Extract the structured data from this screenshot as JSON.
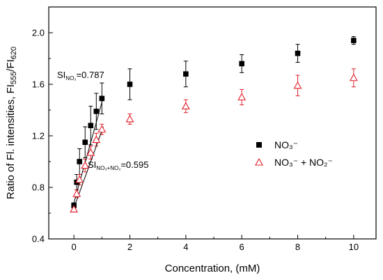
{
  "chart_data": {
    "type": "scatter",
    "xlabel": "Concentration, (mM)",
    "ylabel_parts": {
      "main": "Ratio of Fl. intensities, FI",
      "sub1": "555",
      "sep": "/FI",
      "sub2": "620"
    },
    "xlim": [
      -0.9,
      10.8
    ],
    "ylim": [
      0.4,
      2.2
    ],
    "x_ticks": [
      0,
      2,
      4,
      6,
      8,
      10
    ],
    "y_ticks": [
      0.4,
      0.8,
      1.2,
      1.6,
      2.0
    ],
    "x_tick_labels": [
      "0",
      "2",
      "4",
      "6",
      "8",
      "10"
    ],
    "y_tick_labels": [
      "0.4",
      "0.8",
      "1.2",
      "1.6",
      "2.0"
    ],
    "grid": false,
    "legend_position": "center-right",
    "series": [
      {
        "name": "NO₃⁻",
        "marker": "filled-square",
        "color": "#000000",
        "points": [
          {
            "x": 0,
            "y": 0.66,
            "err": 0.02
          },
          {
            "x": 0.1,
            "y": 0.84,
            "err": 0.06
          },
          {
            "x": 0.2,
            "y": 1.0,
            "err": 0.1
          },
          {
            "x": 0.4,
            "y": 1.15,
            "err": 0.12
          },
          {
            "x": 0.6,
            "y": 1.28,
            "err": 0.15
          },
          {
            "x": 0.8,
            "y": 1.39,
            "err": 0.14
          },
          {
            "x": 1,
            "y": 1.49,
            "err": 0.12
          },
          {
            "x": 2,
            "y": 1.6,
            "err": 0.12
          },
          {
            "x": 4,
            "y": 1.68,
            "err": 0.1
          },
          {
            "x": 6,
            "y": 1.76,
            "err": 0.07
          },
          {
            "x": 8,
            "y": 1.84,
            "err": 0.07
          },
          {
            "x": 10,
            "y": 1.94,
            "err": 0.03
          }
        ],
        "fit": {
          "x0": 0,
          "y0": 0.68,
          "x1": 1.05,
          "y1": 1.5
        }
      },
      {
        "name": "NO₃⁻ + NO₂⁻",
        "marker": "open-triangle",
        "color": "#e0202a",
        "points": [
          {
            "x": 0,
            "y": 0.63,
            "err": 0.02
          },
          {
            "x": 0.1,
            "y": 0.75,
            "err": 0.03
          },
          {
            "x": 0.2,
            "y": 0.86,
            "err": 0.04
          },
          {
            "x": 0.4,
            "y": 0.97,
            "err": 0.05
          },
          {
            "x": 0.6,
            "y": 1.07,
            "err": 0.05
          },
          {
            "x": 0.8,
            "y": 1.17,
            "err": 0.05
          },
          {
            "x": 1,
            "y": 1.25,
            "err": 0.04
          },
          {
            "x": 2,
            "y": 1.33,
            "err": 0.04
          },
          {
            "x": 4,
            "y": 1.43,
            "err": 0.05
          },
          {
            "x": 6,
            "y": 1.5,
            "err": 0.06
          },
          {
            "x": 8,
            "y": 1.59,
            "err": 0.08
          },
          {
            "x": 10,
            "y": 1.65,
            "err": 0.07
          }
        ],
        "fit": {
          "x0": 0,
          "y0": 0.64,
          "x1": 1.05,
          "y1": 1.27
        }
      }
    ],
    "annotations": [
      {
        "prefix": "SI",
        "sub": "NO₃",
        "value": "=0.787"
      },
      {
        "prefix": "SI",
        "sub": "NO₃+NO₂",
        "value": "=0.595"
      }
    ]
  }
}
